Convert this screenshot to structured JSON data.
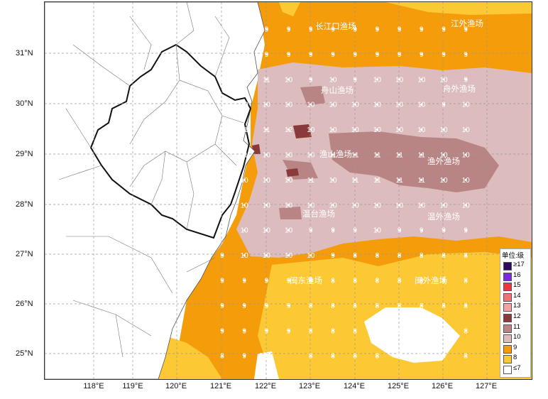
{
  "colors": {
    "le7": "#ffffff",
    "8": "#fcc934",
    "9": "#f59c0b",
    "10": "#dcbcbc",
    "11": "#b98484",
    "12": "#8b3a3a",
    "13": "#f4a3a3",
    "14": "#f07373",
    "15": "#e8383e",
    "16": "#7a2bdc",
    "ge17": "#2e0a5e"
  },
  "lat_labels": [
    "31°N",
    "30°N",
    "29°N",
    "28°N",
    "27°N",
    "26°N",
    "25°N"
  ],
  "lon_labels": [
    "118°E",
    "119°E",
    "120°E",
    "121°E",
    "122°E",
    "123°E",
    "124°E",
    "125°E",
    "126°E",
    "127°E"
  ],
  "regions": [
    {
      "name": "长江口渔场"
    },
    {
      "name": "江外渔场"
    },
    {
      "name": "舟山渔场"
    },
    {
      "name": "舟外渔场"
    },
    {
      "name": "渔山渔场"
    },
    {
      "name": "渔外渔场"
    },
    {
      "name": "温台渔场"
    },
    {
      "name": "温外渔场"
    },
    {
      "name": "闽东渔场"
    },
    {
      "name": "闽外渔场"
    }
  ],
  "grid_values": [
    [
      "8",
      "9",
      "9",
      "9",
      "9",
      "9",
      "9",
      "9",
      "9",
      "9",
      "9",
      "9"
    ],
    [
      "",
      "9",
      "9",
      "9",
      "9",
      "9",
      "9",
      "9",
      "9",
      "9",
      "9",
      "9"
    ],
    [
      "8",
      "10",
      "11",
      "10",
      "9",
      "10",
      "9",
      "10",
      "10",
      "10",
      "10",
      "9"
    ],
    [
      "",
      "10",
      "10",
      "10",
      "10",
      "10",
      "10",
      "10",
      "10",
      "10",
      "9",
      "10"
    ],
    [
      "8",
      "11",
      "11",
      "12",
      "10",
      "10",
      "10",
      "10",
      "10",
      "10",
      "10",
      "10"
    ],
    [
      "",
      "11",
      "10",
      "10",
      "10",
      "11",
      "11",
      "11",
      "11",
      "11",
      "10",
      "10"
    ],
    [
      "",
      "10",
      "10",
      "10",
      "11",
      "10",
      "11",
      "11",
      "11",
      "11",
      "10",
      "10"
    ],
    [
      "",
      "10",
      "10",
      "10",
      "10",
      "10",
      "10",
      "10",
      "10",
      "10",
      "10",
      "10"
    ],
    [
      "10",
      "10",
      "10",
      "10",
      "9",
      "9",
      "9",
      "10",
      "9",
      "9",
      "9",
      "9"
    ],
    [
      "9",
      "10",
      "10",
      "10",
      "10",
      "9",
      "8",
      "8",
      "8",
      "8",
      "8",
      "8"
    ],
    [
      "9",
      "9",
      "9",
      "9",
      "8",
      "8",
      "8",
      "8",
      "8",
      "8",
      "8",
      "8"
    ],
    [
      "9",
      "9",
      "9",
      "9",
      "8",
      "8",
      "8",
      "8",
      "8",
      "8",
      "8",
      "8"
    ],
    [
      "9",
      "9",
      "9",
      "9",
      "8",
      "8",
      "8",
      "8",
      "8",
      "8",
      "8",
      "8"
    ],
    [
      "8",
      "9",
      "9",
      "",
      "8",
      "8",
      "8",
      "8",
      "8",
      "8",
      "8",
      "8"
    ]
  ],
  "legend": {
    "title": "单位:级",
    "items": [
      {
        "label": "≥17",
        "color": "#2e0a5e"
      },
      {
        "label": "16",
        "color": "#7a2bdc"
      },
      {
        "label": "15",
        "color": "#e8383e"
      },
      {
        "label": "14",
        "color": "#f07373"
      },
      {
        "label": "13",
        "color": "#f4a3a3"
      },
      {
        "label": "12",
        "color": "#8b3a3a"
      },
      {
        "label": "11",
        "color": "#b98484"
      },
      {
        "label": "10",
        "color": "#dcbcbc"
      },
      {
        "label": "9",
        "color": "#f59c0b"
      },
      {
        "label": "8",
        "color": "#fcc934"
      },
      {
        "label": "≤7",
        "color": "#ffffff"
      }
    ]
  }
}
